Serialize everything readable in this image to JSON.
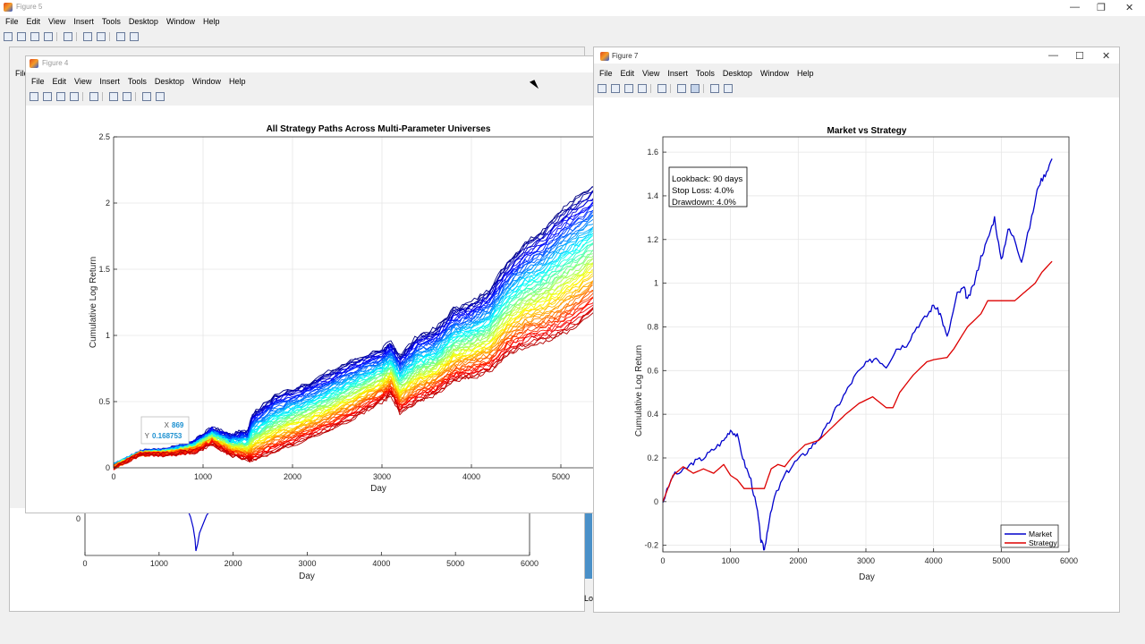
{
  "figure5": {
    "title": "Figure 5",
    "menu": [
      "File",
      "Edit",
      "View",
      "Insert",
      "Tools",
      "Desktop",
      "Window",
      "Help"
    ],
    "xticks": [
      "0",
      "1000",
      "2000",
      "3000",
      "4000",
      "5000",
      "6000"
    ],
    "xlabel": "Day",
    "ytick_visible": "0",
    "partial_left_menu": "File",
    "partial_right_label": "Lo"
  },
  "figure4": {
    "title": "Figure 4",
    "menu": [
      "File",
      "Edit",
      "View",
      "Insert",
      "Tools",
      "Desktop",
      "Window",
      "Help"
    ],
    "datatip": {
      "x_label": "X",
      "x_value": "869",
      "y_label": "Y",
      "y_value": "0.168753"
    }
  },
  "figure7": {
    "title": "Figure 7",
    "menu": [
      "File",
      "Edit",
      "View",
      "Insert",
      "Tools",
      "Desktop",
      "Window",
      "Help"
    ],
    "annotation": [
      "Lookback: 90 days",
      "Stop Loss: 4.0%",
      "Drawdown: 4.0%"
    ]
  },
  "colors": {
    "market": "#0000cc",
    "strategy": "#dd0000"
  },
  "chart_data": [
    {
      "type": "line",
      "title": "All Strategy Paths Across Multi-Parameter Universes",
      "xlabel": "Day",
      "ylabel": "Cumulative Log Return",
      "xlim": [
        0,
        5500
      ],
      "ylim": [
        0,
        2.5
      ],
      "xticks": [
        "0",
        "1000",
        "2000",
        "3000",
        "4000",
        "5000"
      ],
      "yticks": [
        "0",
        "0.5",
        "1",
        "1.5",
        "2",
        "2.5"
      ],
      "grid": true,
      "colormap": "jet",
      "num_paths": 60,
      "x": [
        0,
        300,
        600,
        900,
        1100,
        1300,
        1500,
        1550,
        1800,
        2100,
        2400,
        2700,
        3000,
        3100,
        3200,
        3400,
        3600,
        3800,
        4000,
        4200,
        4400,
        4600,
        4800,
        5000,
        5200,
        5500
      ],
      "upper_envelope": [
        0.02,
        0.12,
        0.14,
        0.2,
        0.3,
        0.25,
        0.28,
        0.4,
        0.55,
        0.62,
        0.72,
        0.82,
        0.9,
        0.95,
        0.85,
        1.0,
        1.05,
        1.2,
        1.25,
        1.35,
        1.55,
        1.7,
        1.8,
        1.95,
        2.05,
        2.2
      ],
      "lower_envelope": [
        0.0,
        0.1,
        0.1,
        0.12,
        0.18,
        0.1,
        0.06,
        0.05,
        0.12,
        0.2,
        0.28,
        0.38,
        0.5,
        0.55,
        0.42,
        0.5,
        0.55,
        0.65,
        0.68,
        0.72,
        0.85,
        0.92,
        0.95,
        1.0,
        1.08,
        1.25
      ]
    },
    {
      "type": "line",
      "title": "Market vs Strategy",
      "xlabel": "Day",
      "ylabel": "Cumulative Log Return",
      "xlim": [
        0,
        6000
      ],
      "ylim": [
        -0.23,
        1.67
      ],
      "xticks": [
        "0",
        "1000",
        "2000",
        "3000",
        "4000",
        "5000",
        "6000"
      ],
      "yticks": [
        "-0.2",
        "0",
        "0.2",
        "0.4",
        "0.6",
        "0.8",
        "1",
        "1.2",
        "1.4",
        "1.6"
      ],
      "grid": true,
      "legend": "bottom-right",
      "series": [
        {
          "name": "Market",
          "x": [
            0,
            150,
            300,
            450,
            600,
            750,
            900,
            1000,
            1100,
            1200,
            1300,
            1400,
            1450,
            1500,
            1550,
            1650,
            1800,
            1950,
            2100,
            2250,
            2400,
            2550,
            2700,
            2850,
            3000,
            3150,
            3300,
            3450,
            3600,
            3750,
            3900,
            4000,
            4100,
            4200,
            4350,
            4450,
            4500,
            4600,
            4700,
            4800,
            4900,
            5000,
            5100,
            5200,
            5300,
            5450,
            5550,
            5650,
            5750
          ],
          "y": [
            0.0,
            0.12,
            0.14,
            0.18,
            0.2,
            0.24,
            0.28,
            0.33,
            0.3,
            0.18,
            0.1,
            -0.05,
            -0.18,
            -0.22,
            -0.12,
            0.02,
            0.12,
            0.18,
            0.22,
            0.27,
            0.33,
            0.42,
            0.5,
            0.58,
            0.63,
            0.66,
            0.62,
            0.7,
            0.72,
            0.8,
            0.85,
            0.9,
            0.86,
            0.75,
            0.95,
            0.98,
            0.92,
            1.0,
            1.12,
            1.2,
            1.3,
            1.1,
            1.25,
            1.2,
            1.1,
            1.3,
            1.45,
            1.5,
            1.57
          ]
        },
        {
          "name": "Strategy",
          "x": [
            0,
            150,
            300,
            450,
            600,
            750,
            900,
            1000,
            1100,
            1200,
            1300,
            1400,
            1500,
            1600,
            1700,
            1800,
            1900,
            2000,
            2100,
            2300,
            2500,
            2700,
            2900,
            3100,
            3300,
            3400,
            3500,
            3700,
            3900,
            4000,
            4200,
            4300,
            4500,
            4700,
            4800,
            4900,
            5000,
            5100,
            5200,
            5350,
            5500,
            5600,
            5750
          ],
          "y": [
            0.0,
            0.12,
            0.16,
            0.13,
            0.15,
            0.13,
            0.17,
            0.12,
            0.1,
            0.06,
            0.06,
            0.06,
            0.06,
            0.15,
            0.17,
            0.16,
            0.2,
            0.23,
            0.26,
            0.28,
            0.34,
            0.4,
            0.45,
            0.48,
            0.43,
            0.43,
            0.5,
            0.58,
            0.64,
            0.65,
            0.66,
            0.7,
            0.8,
            0.86,
            0.92,
            0.92,
            0.92,
            0.92,
            0.92,
            0.96,
            1.0,
            1.05,
            1.1
          ]
        }
      ]
    }
  ]
}
